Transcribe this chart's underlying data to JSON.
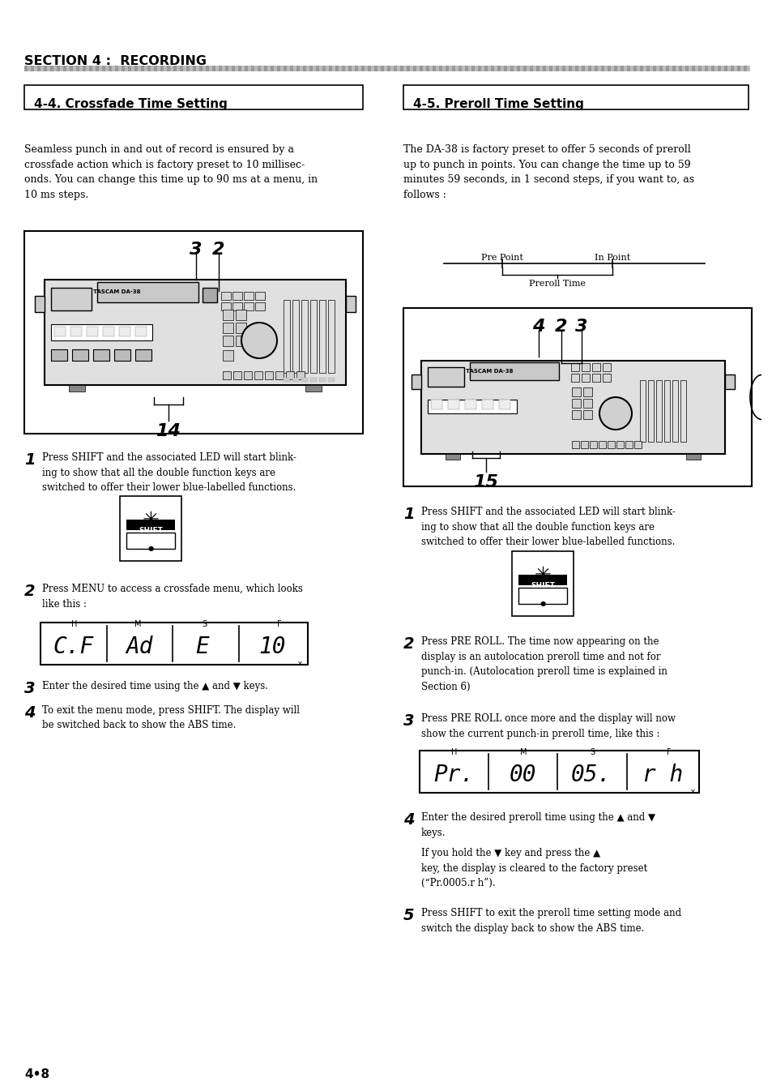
{
  "page_bg": "#ffffff",
  "section_title": "SECTION 4 :  RECORDING",
  "left_box_title": "4-4. Crossfade Time Setting",
  "right_box_title": "4-5. Preroll Time Setting",
  "left_body_text": "Seamless punch in and out of record is ensured by a\ncrossfade action which is factory preset to 10 millisec-\nonds. You can change this time up to 90 ms at a menu, in\n10 ms steps.",
  "right_body_text": "The DA-38 is factory preset to offer 5 seconds of preroll\nup to punch in points. You can change the time up to 59\nminutes 59 seconds, in 1 second steps, if you want to, as\nfollows :",
  "left_step1": "Press SHIFT and the associated LED will start blink-\ning to show that all the double function keys are\nswitched to offer their lower blue-labelled functions.",
  "left_step2": "Press MENU to access a crossfade menu, which looks\nlike this :",
  "left_step3": "Enter the desired time using the ▲ and ▼ keys.",
  "left_step4": "To exit the menu mode, press SHIFT. The display will\nbe switched back to show the ABS time.",
  "right_step1": "Press SHIFT and the associated LED will start blink-\ning to show that all the double function keys are\nswitched to offer their lower blue-labelled functions.",
  "right_step2": "Press PRE ROLL. The time now appearing on the\ndisplay is an autolocation preroll time and not for\npunch-in. (Autolocation preroll time is explained in\nSection 6)",
  "right_step3": "Press PRE ROLL once more and the display will now\nshow the current punch-in preroll time, like this :",
  "right_step4": "Enter the desired preroll time using the ▲ and ▼\nkeys.",
  "right_step4b": "If you hold the ▼ key and press the ▲\nkey, the display is cleared to the factory preset\n(“Pr.0005.r h”).",
  "right_step5": "Press SHIFT to exit the preroll time setting mode and\nswitch the display back to show the ABS time.",
  "page_number": "4•8"
}
